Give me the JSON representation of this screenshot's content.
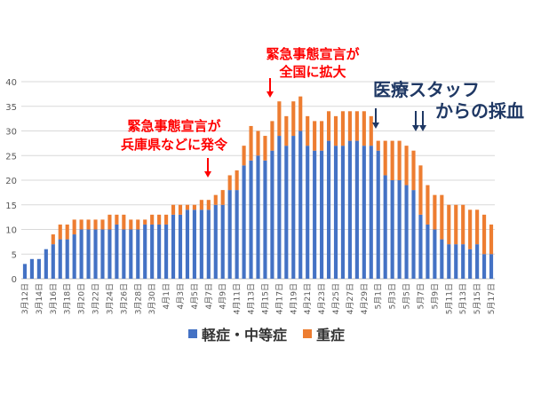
{
  "chart_data": {
    "type": "bar",
    "stacked": true,
    "categories": [
      "3月12日",
      "3月13日",
      "3月14日",
      "3月15日",
      "3月16日",
      "3月17日",
      "3月18日",
      "3月19日",
      "3月20日",
      "3月21日",
      "3月22日",
      "3月23日",
      "3月24日",
      "3月25日",
      "3月26日",
      "3月27日",
      "3月28日",
      "3月29日",
      "3月30日",
      "3月31日",
      "4月1日",
      "4月2日",
      "4月3日",
      "4月4日",
      "4月5日",
      "4月6日",
      "4月7日",
      "4月8日",
      "4月9日",
      "4月10日",
      "4月11日",
      "4月12日",
      "4月13日",
      "4月14日",
      "4月15日",
      "4月16日",
      "4月17日",
      "4月18日",
      "4月19日",
      "4月20日",
      "4月21日",
      "4月22日",
      "4月23日",
      "4月24日",
      "4月25日",
      "4月26日",
      "4月27日",
      "4月28日",
      "4月29日",
      "4月30日",
      "5月1日",
      "5月2日",
      "5月3日",
      "5月4日",
      "5月5日",
      "5月6日",
      "5月7日",
      "5月8日",
      "5月9日",
      "5月10日",
      "5月11日",
      "5月12日",
      "5月13日",
      "5月14日",
      "5月15日",
      "5月16日",
      "5月17日"
    ],
    "tick_labels": [
      "3月12日",
      "3月14日",
      "3月16日",
      "3月18日",
      "3月20日",
      "3月22日",
      "3月24日",
      "3月26日",
      "3月28日",
      "3月30日",
      "4月1日",
      "4月3日",
      "4月5日",
      "4月7日",
      "4月9日",
      "4月11日",
      "4月13日",
      "4月15日",
      "4月17日",
      "4月19日",
      "4月21日",
      "4月23日",
      "4月25日",
      "4月27日",
      "4月29日",
      "5月1日",
      "5月3日",
      "5月5日",
      "5月7日",
      "5月9日",
      "5月11日",
      "5月13日",
      "5月15日",
      "5月17日"
    ],
    "series": [
      {
        "name": "軽症・中等症",
        "color": "#4472C4",
        "values": [
          3,
          4,
          4,
          6,
          7,
          8,
          8,
          9,
          10,
          10,
          10,
          10,
          10,
          11,
          10,
          10,
          10,
          11,
          11,
          11,
          11,
          13,
          13,
          14,
          14,
          14,
          14,
          15,
          15,
          18,
          18,
          23,
          24,
          25,
          24,
          26,
          29,
          27,
          29,
          30,
          27,
          26,
          26,
          28,
          27,
          27,
          28,
          28,
          27,
          27,
          26,
          21,
          20,
          20,
          19,
          18,
          13,
          11,
          10,
          8,
          7,
          7,
          7,
          6,
          7,
          5,
          5
        ]
      },
      {
        "name": "重症",
        "color": "#ED7D31",
        "values": [
          0,
          0,
          0,
          0,
          2,
          3,
          3,
          3,
          2,
          2,
          2,
          2,
          3,
          2,
          3,
          2,
          2,
          1,
          2,
          2,
          2,
          2,
          2,
          1,
          1,
          2,
          2,
          2,
          3,
          3,
          4,
          4,
          7,
          5,
          5,
          6,
          7,
          6,
          7,
          7,
          6,
          6,
          6,
          6,
          6,
          7,
          6,
          6,
          7,
          6,
          2,
          7,
          8,
          8,
          8,
          8,
          10,
          8,
          7,
          9,
          8,
          8,
          8,
          8,
          7,
          8,
          6
        ]
      }
    ],
    "ylim": [
      0,
      40
    ],
    "yticks": [
      0,
      5,
      10,
      15,
      20,
      25,
      30,
      35,
      40
    ],
    "grid": "horizontal",
    "legend_position": "bottom-center",
    "annotations": [
      {
        "text_lines": [
          "緊急事態宣言が",
          "兵庫県などに発令"
        ],
        "color": "#FF0000",
        "arrow_at": "4月7日"
      },
      {
        "text_lines": [
          "緊急事態宣言が",
          "全国に拡大"
        ],
        "color": "#FF0000",
        "arrow_at": "4月16日"
      },
      {
        "text_lines": [
          "医療スタッフ",
          "からの採血"
        ],
        "color": "#1F3864",
        "arrow_at": [
          "5月1日",
          "5月7日",
          "5月8日"
        ]
      }
    ]
  }
}
